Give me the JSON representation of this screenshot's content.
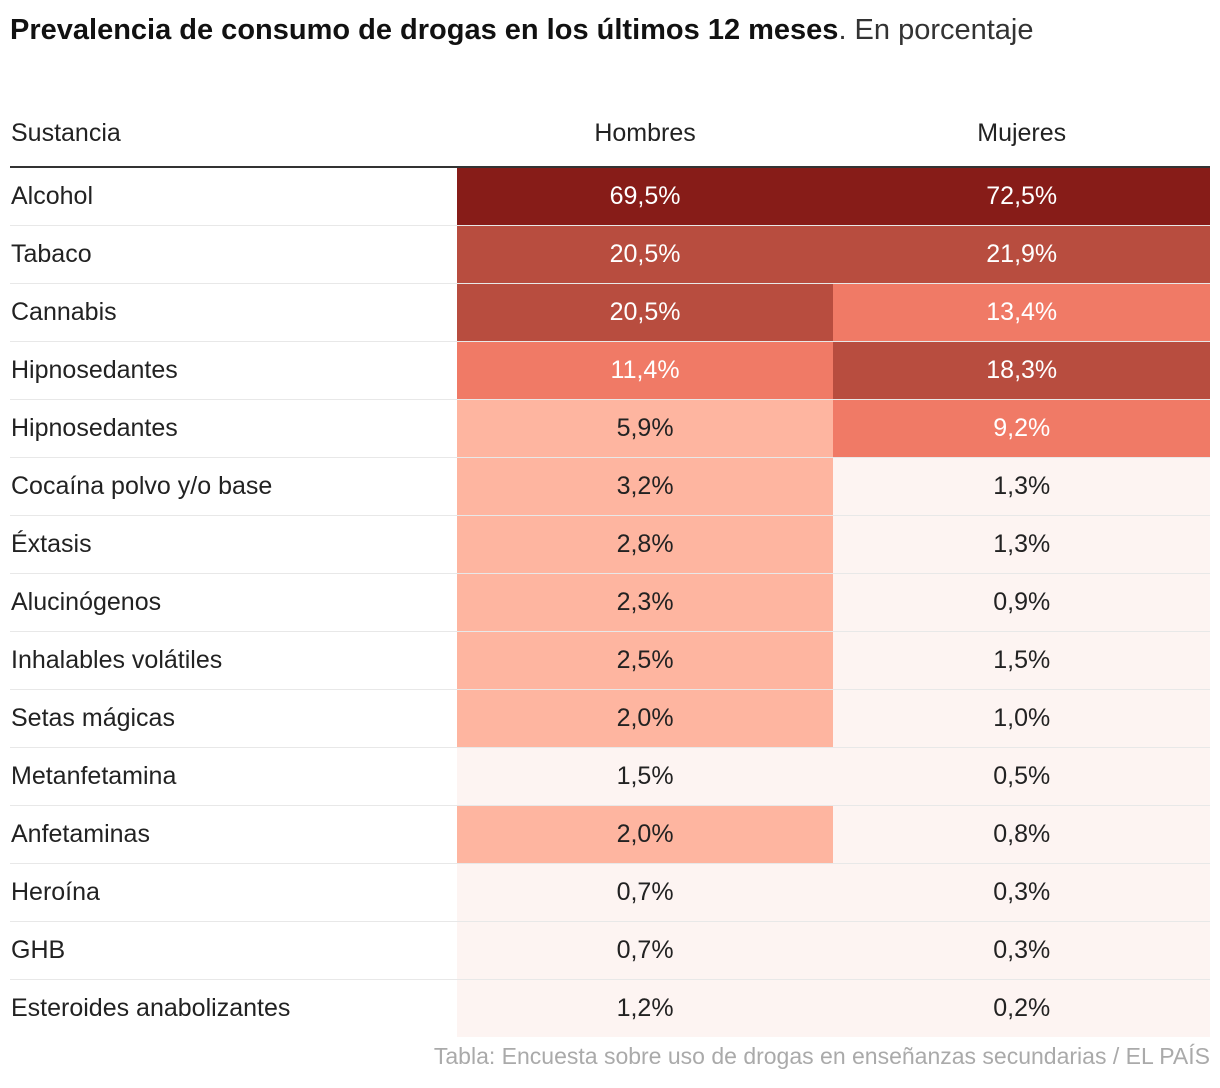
{
  "title": "Prevalencia de consumo de drogas en los últimos 12 meses",
  "subtitle": ". En porcentaje",
  "source": "Tabla: Encuesta sobre uso de drogas en enseñanzas secundarias / EL PAÍS",
  "chart_data": {
    "type": "table",
    "columns": [
      "Sustancia",
      "Hombres",
      "Mujeres"
    ],
    "rows": [
      {
        "label": "Alcohol",
        "hombres": "69,5%",
        "mujeres": "72,5%",
        "h": 69.5,
        "m": 72.5
      },
      {
        "label": "Tabaco",
        "hombres": "20,5%",
        "mujeres": "21,9%",
        "h": 20.5,
        "m": 21.9
      },
      {
        "label": "Cannabis",
        "hombres": "20,5%",
        "mujeres": "13,4%",
        "h": 20.5,
        "m": 13.4
      },
      {
        "label": "Hipnosedantes",
        "hombres": "11,4%",
        "mujeres": "18,3%",
        "h": 11.4,
        "m": 18.3
      },
      {
        "label": "Hipnosedantes",
        "hombres": "5,9%",
        "mujeres": "9,2%",
        "h": 5.9,
        "m": 9.2
      },
      {
        "label": "Cocaína polvo y/o base",
        "hombres": "3,2%",
        "mujeres": "1,3%",
        "h": 3.2,
        "m": 1.3
      },
      {
        "label": "Éxtasis",
        "hombres": "2,8%",
        "mujeres": "1,3%",
        "h": 2.8,
        "m": 1.3
      },
      {
        "label": "Alucinógenos",
        "hombres": "2,3%",
        "mujeres": "0,9%",
        "h": 2.3,
        "m": 0.9
      },
      {
        "label": "Inhalables volátiles",
        "hombres": "2,5%",
        "mujeres": "1,5%",
        "h": 2.5,
        "m": 1.5
      },
      {
        "label": "Setas mágicas",
        "hombres": "2,0%",
        "mujeres": "1,0%",
        "h": 2.0,
        "m": 1.0
      },
      {
        "label": "Metanfetamina",
        "hombres": "1,5%",
        "mujeres": "0,5%",
        "h": 1.5,
        "m": 0.5
      },
      {
        "label": "Anfetaminas",
        "hombres": "2,0%",
        "mujeres": "0,8%",
        "h": 2.0,
        "m": 0.8
      },
      {
        "label": "Heroína",
        "hombres": "0,7%",
        "mujeres": "0,3%",
        "h": 0.7,
        "m": 0.3
      },
      {
        "label": "GHB",
        "hombres": "0,7%",
        "mujeres": "0,3%",
        "h": 0.7,
        "m": 0.3
      },
      {
        "label": "Esteroides anabolizantes",
        "hombres": "1,2%",
        "mujeres": "0,2%",
        "h": 1.2,
        "m": 0.2
      }
    ],
    "color_scale": [
      {
        "min": 50,
        "color": "#871c18",
        "text": "#ffffff"
      },
      {
        "min": 15,
        "color": "#b84d3f",
        "text": "#ffffff"
      },
      {
        "min": 8,
        "color": "#f07a66",
        "text": "#ffffff"
      },
      {
        "min": 2,
        "color": "#feb5a0",
        "text": "#222222"
      },
      {
        "min": 0,
        "color": "#fdf4f2",
        "text": "#222222"
      }
    ]
  }
}
